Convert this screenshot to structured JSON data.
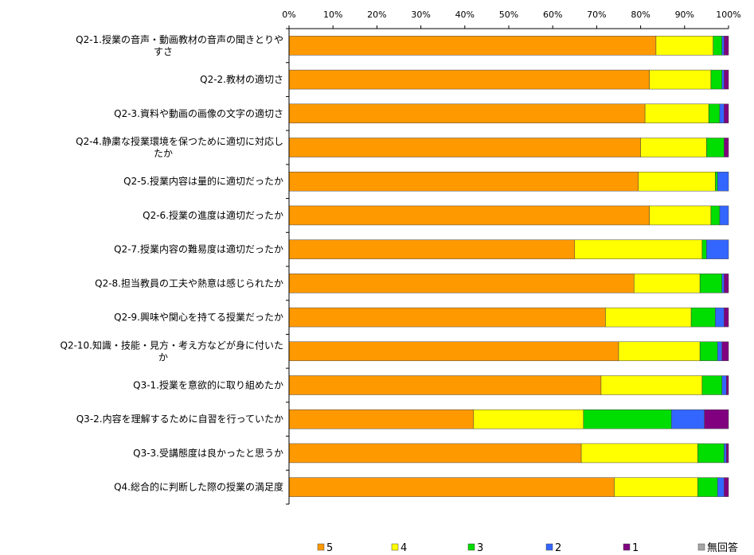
{
  "chart_data": {
    "type": "bar",
    "orientation": "horizontal",
    "stacked": "percent",
    "title": "",
    "xlabel": "",
    "ylabel": "",
    "xlim": [
      0,
      100
    ],
    "x_ticks": [
      "0%",
      "10%",
      "20%",
      "30%",
      "40%",
      "50%",
      "60%",
      "70%",
      "80%",
      "90%",
      "100%"
    ],
    "grid": false,
    "legend_position": "bottom",
    "categories": [
      [
        "Q2-1.授業の音声・動画教材の音声の聞きとりや",
        "すさ"
      ],
      [
        "Q2-2.教材の適切さ"
      ],
      [
        "Q2-3.資料や動画の画像の文字の適切さ"
      ],
      [
        "Q2-4.静粛な授業環境を保つために適切に対応し",
        "たか"
      ],
      [
        "Q2-5.授業内容は量的に適切だったか"
      ],
      [
        "Q2-6.授業の進度は適切だったか"
      ],
      [
        "Q2-7.授業内容の難易度は適切だったか"
      ],
      [
        "Q2-8.担当教員の工夫や熱意は感じられたか"
      ],
      [
        "Q2-9.興味や関心を持てる授業だったか"
      ],
      [
        "Q2-10.知識・技能・見方・考え方などが身に付いた",
        "か"
      ],
      [
        "Q3-1.授業を意欲的に取り組めたか"
      ],
      [
        "Q3-2.内容を理解するために自習を行っていたか"
      ],
      [
        "Q3-3.受講態度は良かったと思うか"
      ],
      [
        "Q4.総合的に判断した際の授業の満足度"
      ]
    ],
    "series": [
      {
        "name": "5",
        "color": "#FF9900",
        "values": [
          83.5,
          82.0,
          81.0,
          80.0,
          79.5,
          82.0,
          65.0,
          78.5,
          72.0,
          75.0,
          71.0,
          42.0,
          66.5,
          74.0
        ]
      },
      {
        "name": "4",
        "color": "#FFFF00",
        "values": [
          13.0,
          14.0,
          14.5,
          15.0,
          17.5,
          14.0,
          29.0,
          15.0,
          19.5,
          18.5,
          23.0,
          25.0,
          26.5,
          19.0
        ]
      },
      {
        "name": "3",
        "color": "#00DD00",
        "values": [
          2.0,
          2.5,
          2.5,
          4.0,
          0.5,
          2.0,
          1.0,
          5.0,
          5.5,
          4.0,
          4.5,
          20.0,
          6.0,
          4.5
        ]
      },
      {
        "name": "2",
        "color": "#3366FF",
        "values": [
          0.5,
          0.5,
          1.0,
          0.0,
          2.5,
          2.0,
          5.0,
          0.5,
          2.0,
          1.0,
          1.0,
          7.5,
          0.5,
          1.5
        ]
      },
      {
        "name": "1",
        "color": "#800080",
        "values": [
          1.0,
          1.0,
          1.0,
          1.0,
          0.0,
          0.0,
          0.0,
          1.0,
          1.0,
          1.5,
          0.5,
          5.5,
          0.5,
          1.0
        ]
      },
      {
        "name": "無回答",
        "color": "#A6A6A6",
        "values": [
          0,
          0,
          0,
          0,
          0,
          0,
          0,
          0,
          0,
          0,
          0,
          0,
          0,
          0
        ]
      }
    ]
  }
}
